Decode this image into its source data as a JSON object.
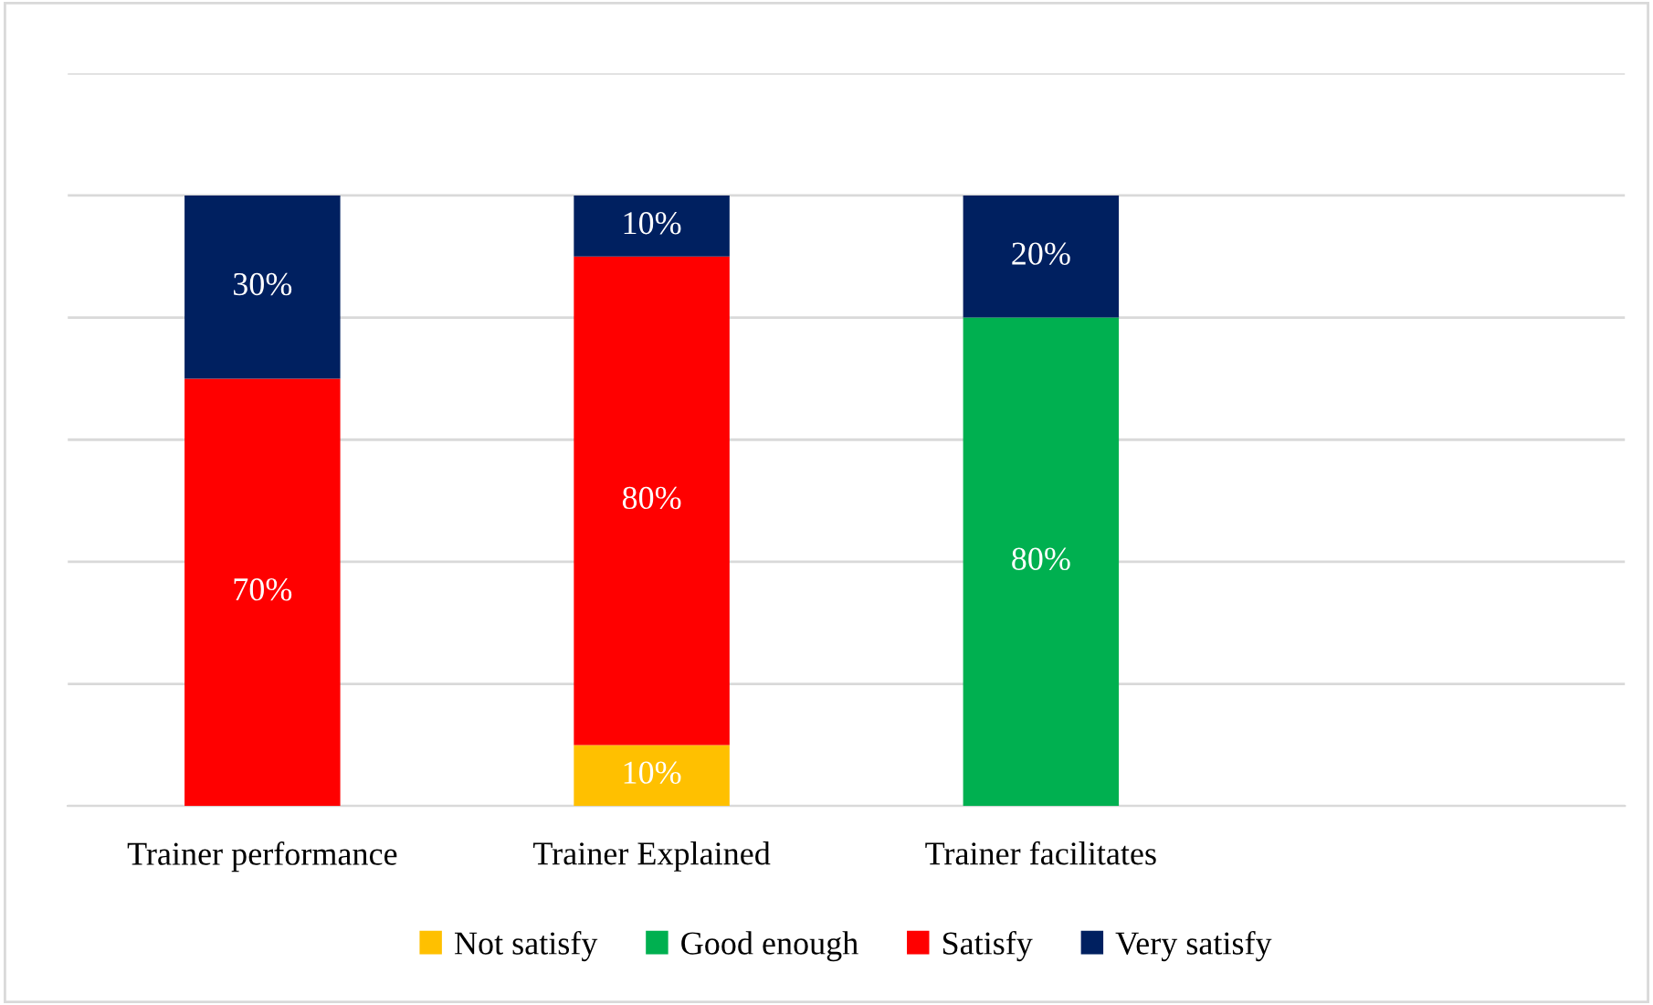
{
  "chart_data": {
    "type": "bar",
    "stacked": true,
    "categories": [
      "Trainer performance",
      "Trainer Explained",
      "Trainer facilitates",
      null
    ],
    "series": [
      {
        "name": "Not satisfy",
        "color": "#ffc000",
        "values": [
          null,
          10,
          null,
          null
        ],
        "value_labels": [
          null,
          "10%",
          null,
          null
        ]
      },
      {
        "name": "Good enough",
        "color": "#00b050",
        "values": [
          null,
          null,
          80,
          null
        ],
        "value_labels": [
          null,
          null,
          "80%",
          null
        ]
      },
      {
        "name": "Satisfy",
        "color": "#ff0000",
        "values": [
          70,
          80,
          null,
          null
        ],
        "value_labels": [
          "70%",
          "80%",
          null,
          null
        ]
      },
      {
        "name": "Very satisfy",
        "color": "#002060",
        "values": [
          30,
          10,
          20,
          null
        ],
        "value_labels": [
          "30%",
          "10%",
          "20%",
          null
        ]
      }
    ],
    "tick_labels": "x",
    "grid": "y",
    "legend": "bottom"
  }
}
